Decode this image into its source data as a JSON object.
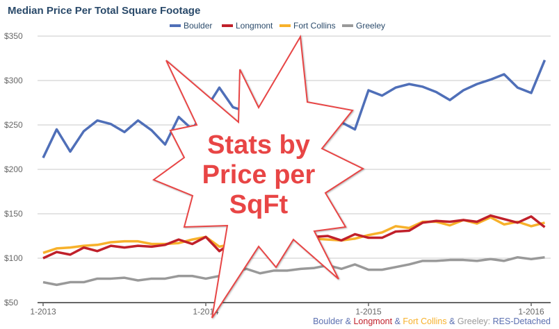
{
  "chart_data": {
    "type": "line",
    "title": "Median Price Per Total Square Footage",
    "xlabel": "",
    "ylabel": "",
    "ylim": [
      50,
      350
    ],
    "yticks": [
      "$50",
      "$100",
      "$150",
      "$200",
      "$250",
      "$300",
      "$350"
    ],
    "ytick_values": [
      50,
      100,
      150,
      200,
      250,
      300,
      350
    ],
    "xticks": [
      {
        "label": "1-2013",
        "index": 0
      },
      {
        "label": "1-2014",
        "index": 12
      },
      {
        "label": "1-2015",
        "index": 24
      },
      {
        "label": "1-2016",
        "index": 36
      }
    ],
    "grid": true,
    "legend_position": "top",
    "series": [
      {
        "name": "Boulder",
        "color": "#4f6fb8",
        "values": [
          213,
          245,
          220,
          243,
          255,
          251,
          242,
          255,
          244,
          228,
          259,
          245,
          268,
          292,
          270,
          265,
          262,
          258,
          255,
          258,
          257,
          262,
          253,
          245,
          289,
          283,
          292,
          296,
          293,
          287,
          278,
          289,
          296,
          301,
          307,
          292,
          286,
          323
        ]
      },
      {
        "name": "Longmont",
        "color": "#c0202a",
        "values": [
          100,
          107,
          104,
          112,
          108,
          114,
          112,
          114,
          113,
          115,
          121,
          116,
          124,
          108,
          118,
          115,
          117,
          118,
          120,
          122,
          124,
          125,
          120,
          127,
          123,
          123,
          130,
          131,
          140,
          142,
          141,
          143,
          141,
          148,
          144,
          140,
          147,
          135
        ]
      },
      {
        "name": "Fort Collins",
        "color": "#f7b12b",
        "values": [
          106,
          111,
          112,
          114,
          115,
          118,
          119,
          119,
          116,
          116,
          117,
          121,
          124,
          113,
          116,
          118,
          119,
          120,
          121,
          121,
          122,
          121,
          120,
          122,
          126,
          129,
          136,
          134,
          141,
          141,
          137,
          143,
          139,
          146,
          138,
          141,
          136,
          140
        ]
      },
      {
        "name": "Greeley",
        "color": "#999999",
        "values": [
          73,
          70,
          73,
          73,
          77,
          77,
          78,
          75,
          77,
          77,
          80,
          80,
          77,
          80,
          85,
          88,
          83,
          86,
          86,
          88,
          89,
          92,
          88,
          93,
          87,
          87,
          90,
          93,
          97,
          97,
          98,
          98,
          97,
          99,
          97,
          101,
          99,
          101
        ]
      }
    ]
  },
  "footer": {
    "parts": [
      {
        "text": "Boulder",
        "color": "#5a6fb0"
      },
      {
        "text": " & ",
        "color": "#5a6fb0"
      },
      {
        "text": "Longmont",
        "color": "#c0202a"
      },
      {
        "text": " & ",
        "color": "#5a6fb0"
      },
      {
        "text": "Fort Collins",
        "color": "#f7b12b"
      },
      {
        "text": " & ",
        "color": "#5a6fb0"
      },
      {
        "text": "Greeley: ",
        "color": "#999999"
      },
      {
        "text": "RES-Detached",
        "color": "#5a6fb0"
      }
    ]
  },
  "overlay": {
    "lines": [
      "Stats by",
      "Price per",
      "SqFt"
    ],
    "color": "#e84545"
  }
}
